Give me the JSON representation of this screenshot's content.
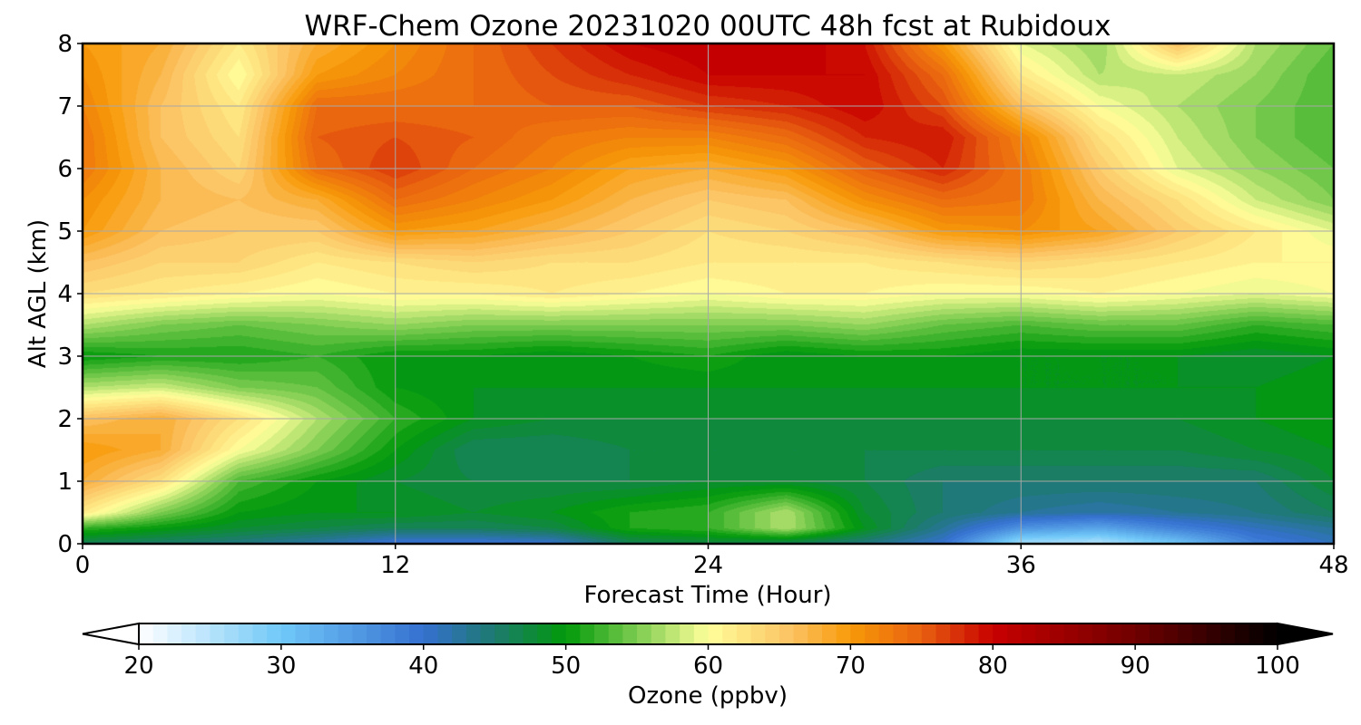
{
  "chart_data": {
    "type": "heatmap",
    "title": "WRF-Chem Ozone  20231020 00UTC 48h fcst at Rubidoux",
    "xlabel": "Forecast Time (Hour)",
    "ylabel": "Alt AGL (km)",
    "xlim": [
      0,
      48
    ],
    "ylim": [
      0,
      8
    ],
    "xticks": [
      0,
      12,
      24,
      36,
      48
    ],
    "yticks": [
      0,
      1,
      2,
      3,
      4,
      5,
      6,
      7,
      8
    ],
    "grid": true,
    "colorbar": {
      "label": "Ozone  (ppbv)",
      "min": 20,
      "max": 100,
      "step": 1,
      "ticks": [
        20,
        30,
        40,
        50,
        60,
        70,
        80,
        90,
        100
      ],
      "extend": "both",
      "orientation": "horizontal",
      "color_stops": [
        {
          "v": 20,
          "c": "#ffffff"
        },
        {
          "v": 30,
          "c": "#70c8f8"
        },
        {
          "v": 40,
          "c": "#3570d0"
        },
        {
          "v": 45,
          "c": "#1d7a6e"
        },
        {
          "v": 50,
          "c": "#009a0a"
        },
        {
          "v": 55,
          "c": "#7dcc50"
        },
        {
          "v": 60,
          "c": "#ffff9a"
        },
        {
          "v": 66,
          "c": "#fcc060"
        },
        {
          "v": 70,
          "c": "#f79a08"
        },
        {
          "v": 75,
          "c": "#e86010"
        },
        {
          "v": 80,
          "c": "#c80000"
        },
        {
          "v": 90,
          "c": "#700000"
        },
        {
          "v": 100,
          "c": "#000000"
        }
      ]
    },
    "grid_x": [
      0,
      3,
      6,
      9,
      12,
      15,
      18,
      21,
      24,
      27,
      30,
      33,
      36,
      39,
      42,
      45,
      48
    ],
    "grid_y": [
      0,
      0.25,
      0.5,
      1,
      1.5,
      2,
      2.5,
      3,
      3.5,
      4,
      4.5,
      5,
      5.5,
      6,
      6.5,
      7,
      7.5,
      8
    ],
    "values": [
      [
        46,
        45,
        44,
        42,
        39,
        39,
        40,
        46,
        47,
        46,
        44,
        40,
        26,
        25,
        30,
        38,
        41
      ],
      [
        52,
        50,
        48,
        47,
        46,
        46,
        47,
        51,
        52,
        57,
        49,
        43,
        36,
        34,
        38,
        41,
        43
      ],
      [
        62,
        55,
        50,
        49,
        49,
        48,
        49,
        51,
        52,
        57,
        48,
        45,
        43,
        42,
        43,
        44,
        46
      ],
      [
        68,
        63,
        53,
        50,
        48,
        47,
        47,
        47,
        48,
        48,
        47,
        45,
        45,
        45,
        45,
        45,
        48
      ],
      [
        70,
        68,
        60,
        55,
        50,
        46,
        46,
        47,
        47,
        47,
        47,
        47,
        47,
        47,
        47,
        48,
        49
      ],
      [
        66,
        68,
        63,
        57,
        52,
        49,
        48,
        48,
        48,
        48,
        48,
        48,
        48,
        48,
        48,
        49,
        50
      ],
      [
        57,
        58,
        55,
        54,
        50,
        49,
        49,
        49,
        49,
        49,
        49,
        49,
        49,
        49,
        49,
        49,
        50
      ],
      [
        50,
        51,
        51,
        52,
        50,
        50,
        49,
        50,
        51,
        49,
        50,
        50,
        49,
        49,
        49,
        48,
        49
      ],
      [
        57,
        55,
        54,
        55,
        56,
        55,
        55,
        55,
        55,
        55,
        56,
        54,
        53,
        54,
        54,
        52,
        53
      ],
      [
        63,
        62,
        61,
        60,
        61,
        61,
        62,
        61,
        60,
        61,
        61,
        60,
        60,
        61,
        60,
        59,
        60
      ],
      [
        66,
        64,
        64,
        62,
        63,
        64,
        63,
        63,
        62,
        62,
        62,
        63,
        64,
        63,
        62,
        61,
        61
      ],
      [
        70,
        66,
        65,
        65,
        70,
        69,
        67,
        65,
        63,
        64,
        66,
        70,
        71,
        69,
        65,
        62,
        59
      ],
      [
        71,
        67,
        66,
        68,
        74,
        72,
        70,
        67,
        65,
        66,
        71,
        74,
        73,
        67,
        63,
        58,
        55
      ],
      [
        73,
        67,
        64,
        74,
        77,
        74,
        72,
        69,
        68,
        70,
        75,
        78,
        73,
        65,
        59,
        56,
        54
      ],
      [
        73,
        66,
        63,
        75,
        76,
        75,
        73,
        72,
        72,
        74,
        78,
        79,
        72,
        63,
        58,
        55,
        53
      ],
      [
        72,
        66,
        62,
        74,
        74,
        74,
        75,
        75,
        77,
        78,
        80,
        76,
        66,
        60,
        57,
        55,
        53
      ],
      [
        71,
        67,
        60,
        70,
        72,
        74,
        76,
        78,
        80,
        80,
        80,
        74,
        62,
        57,
        58,
        56,
        53
      ],
      [
        70,
        68,
        62,
        68,
        71,
        74,
        77,
        80,
        81,
        81,
        79,
        70,
        59,
        56,
        66,
        57,
        54
      ]
    ]
  }
}
